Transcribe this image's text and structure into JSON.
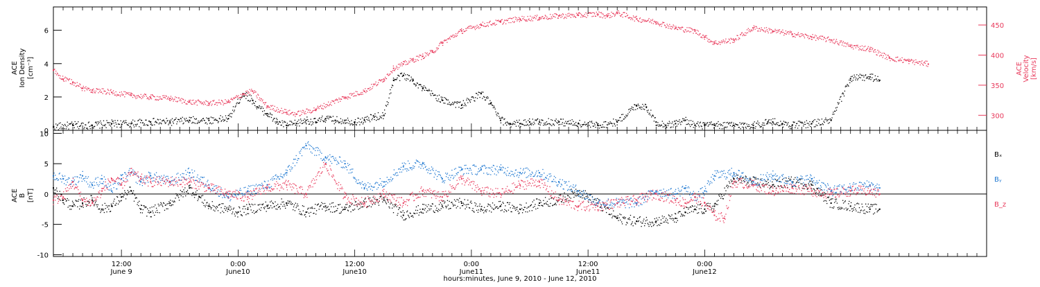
{
  "chart_data": [
    {
      "type": "scatter",
      "panel": "top",
      "ylabel_left": [
        "ACE",
        "Ion Density",
        "[cm⁻³]"
      ],
      "ylabel_right": [
        "ACE",
        "Velocity",
        "[km/s]"
      ],
      "ylim_left": [
        0,
        7.4
      ],
      "ylim_right": [
        275,
        480
      ],
      "yticks_left": [
        0,
        2,
        4,
        6
      ],
      "yticks_right": [
        300,
        350,
        400,
        450
      ],
      "color_left": "#000000",
      "color_right": "#e8385a",
      "series": [
        {
          "axis": "left",
          "color": "#000000",
          "x_hours": [
            0,
            2,
            4,
            6,
            8,
            10,
            12,
            14,
            16,
            18,
            19.5,
            20.5,
            21,
            22,
            23,
            24,
            25,
            26,
            27,
            28,
            29,
            30,
            31,
            32,
            33,
            34,
            35,
            36,
            37,
            38,
            40,
            42,
            44,
            45,
            46,
            47,
            48,
            49,
            50,
            52,
            54,
            56,
            58,
            60,
            61,
            62,
            63,
            64,
            65,
            66,
            67,
            68,
            70,
            72,
            73.5,
            74,
            75,
            76,
            78,
            80,
            82,
            84,
            85
          ],
          "values": [
            0.2,
            0.3,
            0.3,
            0.4,
            0.4,
            0.5,
            0.5,
            0.6,
            0.6,
            0.7,
            2.2,
            1.8,
            1.4,
            1.0,
            0.5,
            0.3,
            0.4,
            0.6,
            0.5,
            0.7,
            0.6,
            0.6,
            0.5,
            0.6,
            0.8,
            0.9,
            3.0,
            3.3,
            3.0,
            2.5,
            1.8,
            1.5,
            2.2,
            1.6,
            0.6,
            0.4,
            0.4,
            0.5,
            0.5,
            0.5,
            0.4,
            0.3,
            0.5,
            1.5,
            1.4,
            0.5,
            0.3,
            0.4,
            0.6,
            0.3,
            0.3,
            0.3,
            0.3,
            0.3,
            0.5,
            0.5,
            0.4,
            0.3,
            0.4,
            0.6,
            3.1,
            3.2,
            3.0
          ]
        },
        {
          "axis": "right",
          "color": "#e8385a",
          "x_hours": [
            0,
            1,
            2,
            3,
            4,
            6,
            8,
            10,
            12,
            14,
            16,
            18,
            19.5,
            20.5,
            22,
            24,
            25,
            27,
            30,
            32,
            34,
            35,
            36,
            37,
            38,
            39,
            40,
            42,
            44,
            46,
            48,
            50,
            52,
            54,
            56,
            57,
            58,
            60,
            62,
            64,
            66,
            67,
            68,
            70,
            72,
            74,
            76,
            78,
            80,
            82,
            84,
            86,
            88,
            90
          ],
          "values": [
            375,
            360,
            355,
            345,
            342,
            338,
            333,
            330,
            328,
            322,
            320,
            322,
            335,
            340,
            315,
            305,
            302,
            310,
            330,
            340,
            360,
            378,
            385,
            392,
            398,
            405,
            420,
            440,
            450,
            455,
            460,
            462,
            465,
            466,
            468,
            465,
            470,
            460,
            455,
            445,
            440,
            430,
            420,
            425,
            445,
            440,
            435,
            430,
            425,
            415,
            410,
            395,
            390,
            385
          ]
        }
      ]
    },
    {
      "type": "scatter",
      "panel": "bottom",
      "ylabel": [
        "ACE",
        "B",
        "[nT]"
      ],
      "ylim": [
        -10.3,
        10.5
      ],
      "yticks": [
        -10,
        -5,
        0,
        5,
        10
      ],
      "zero_line": true,
      "legend_position": "right",
      "series": [
        {
          "name": "Bₓ",
          "color": "#000000",
          "x_hours": [
            0,
            1,
            2,
            3,
            4,
            5,
            6,
            7,
            8,
            9,
            10,
            12,
            14,
            15,
            16,
            18,
            19,
            20,
            22,
            24,
            26,
            28,
            30,
            32,
            34,
            36,
            38,
            40,
            42,
            44,
            46,
            48,
            50,
            52,
            54,
            56,
            58,
            60,
            62,
            64,
            65,
            66,
            67,
            68,
            70,
            72,
            74,
            76,
            78,
            80,
            82,
            84,
            85
          ],
          "values": [
            1.0,
            -1.0,
            -2.0,
            -1.5,
            -1.0,
            -2.5,
            -2.0,
            -0.5,
            0.5,
            -2.5,
            -3.0,
            -1.5,
            1.0,
            -0.5,
            -2.0,
            -2.5,
            -3.0,
            -2.5,
            -2.0,
            -1.5,
            -3.0,
            -2.0,
            -2.5,
            -1.5,
            -1.0,
            -3.5,
            -2.5,
            -2.0,
            -1.5,
            -2.5,
            -2.0,
            -2.5,
            -1.5,
            -1.0,
            0.5,
            -1.5,
            -4.0,
            -4.5,
            -4.5,
            -4.0,
            -3.0,
            -2.5,
            -2.5,
            -2.0,
            2.5,
            2.0,
            1.5,
            2.0,
            1.5,
            -1.5,
            -2.0,
            -2.5,
            -2.5
          ]
        },
        {
          "name": "Bᵧ",
          "color": "#1f78d1",
          "x_hours": [
            0,
            1,
            2,
            3,
            4,
            5,
            6,
            7,
            8,
            9,
            10,
            12,
            14,
            16,
            18,
            20,
            22,
            24,
            26,
            28,
            30,
            32,
            34,
            36,
            38,
            40,
            42,
            44,
            46,
            48,
            50,
            52,
            54,
            56,
            58,
            60,
            62,
            64,
            65,
            66,
            67,
            68,
            70,
            72,
            74,
            76,
            78,
            80,
            82,
            84,
            85
          ],
          "values": [
            3.0,
            2.5,
            2.0,
            3.0,
            1.5,
            2.5,
            0.5,
            2.5,
            3.5,
            2.0,
            3.0,
            2.0,
            3.5,
            1.5,
            -0.5,
            0.5,
            1.5,
            3.5,
            8.0,
            6.0,
            5.0,
            1.0,
            2.0,
            4.5,
            5.0,
            2.5,
            4.0,
            4.0,
            4.0,
            3.5,
            3.5,
            2.0,
            0.5,
            -1.5,
            -1.5,
            -1.5,
            0.5,
            0.0,
            1.0,
            -0.5,
            0.5,
            3.0,
            3.5,
            2.0,
            3.0,
            2.0,
            2.5,
            0.5,
            1.0,
            1.5,
            1.0
          ]
        },
        {
          "name": "B_z",
          "color": "#e8385a",
          "x_hours": [
            0,
            1,
            2,
            3,
            4,
            5,
            6,
            7,
            8,
            9,
            10,
            12,
            14,
            16,
            18,
            20,
            22,
            24,
            26,
            28,
            30,
            32,
            34,
            36,
            38,
            40,
            42,
            44,
            46,
            48,
            50,
            52,
            54,
            56,
            58,
            60,
            62,
            64,
            65,
            66,
            67,
            68,
            69,
            70,
            72,
            74,
            76,
            78,
            80,
            82,
            84,
            85
          ],
          "values": [
            -1.0,
            -0.5,
            2.0,
            -1.0,
            -1.5,
            0.5,
            2.5,
            1.5,
            3.5,
            2.5,
            2.0,
            2.0,
            2.0,
            1.0,
            0.0,
            -0.5,
            1.0,
            1.5,
            0.0,
            5.0,
            -0.5,
            -1.5,
            0.0,
            -1.5,
            0.5,
            -0.5,
            2.5,
            0.5,
            0.0,
            1.5,
            2.0,
            -1.0,
            -2.0,
            -2.0,
            -1.5,
            -1.0,
            0.0,
            -1.0,
            -1.5,
            -0.5,
            -1.5,
            -3.5,
            -4.0,
            2.0,
            1.5,
            0.5,
            1.0,
            0.5,
            0.0,
            0.5,
            0.5,
            0.0
          ]
        }
      ]
    }
  ],
  "time_axis": {
    "title": "hours:minutes, June  9, 2010 - June 12, 2010",
    "x_start_hours": 0,
    "x_end_hours": 96,
    "ticks": [
      {
        "hour": 7,
        "time": "12:00",
        "date": "June 9"
      },
      {
        "hour": 19,
        "time": "0:00",
        "date": "June10"
      },
      {
        "hour": 31,
        "time": "12:00",
        "date": "June10"
      },
      {
        "hour": 43,
        "time": "0:00",
        "date": "June11"
      },
      {
        "hour": 55,
        "time": "12:00",
        "date": "June11"
      },
      {
        "hour": 67,
        "time": "0:00",
        "date": "June12"
      }
    ]
  },
  "legend": {
    "bx": "Bₓ",
    "by": "Bᵧ",
    "bz": "B_z"
  }
}
